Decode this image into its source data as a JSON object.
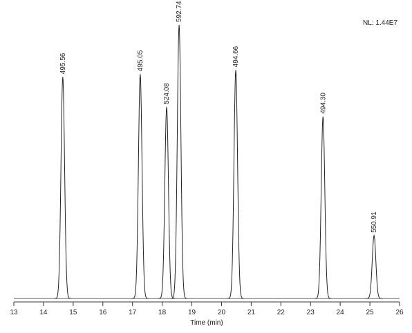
{
  "chart_data": {
    "type": "chromatogram",
    "annotation": "NL: 1.44E7",
    "x_label": "Time (min)",
    "xlim": [
      13,
      26
    ],
    "xticks": [
      13,
      14,
      15,
      16,
      17,
      18,
      19,
      20,
      21,
      22,
      23,
      24,
      25,
      26
    ],
    "ylim": [
      0,
      100
    ],
    "color": "#222222",
    "peaks": [
      {
        "x": 14.65,
        "height": 81,
        "label": "495.56"
      },
      {
        "x": 17.26,
        "height": 82,
        "label": "495.05"
      },
      {
        "x": 18.15,
        "height": 70,
        "label": "524.08"
      },
      {
        "x": 18.57,
        "height": 100,
        "label": "592.74"
      },
      {
        "x": 20.48,
        "height": 83.5,
        "label": "494.66"
      },
      {
        "x": 23.42,
        "height": 66.5,
        "label": "494.30"
      },
      {
        "x": 25.14,
        "height": 23,
        "label": "550.91"
      }
    ]
  }
}
